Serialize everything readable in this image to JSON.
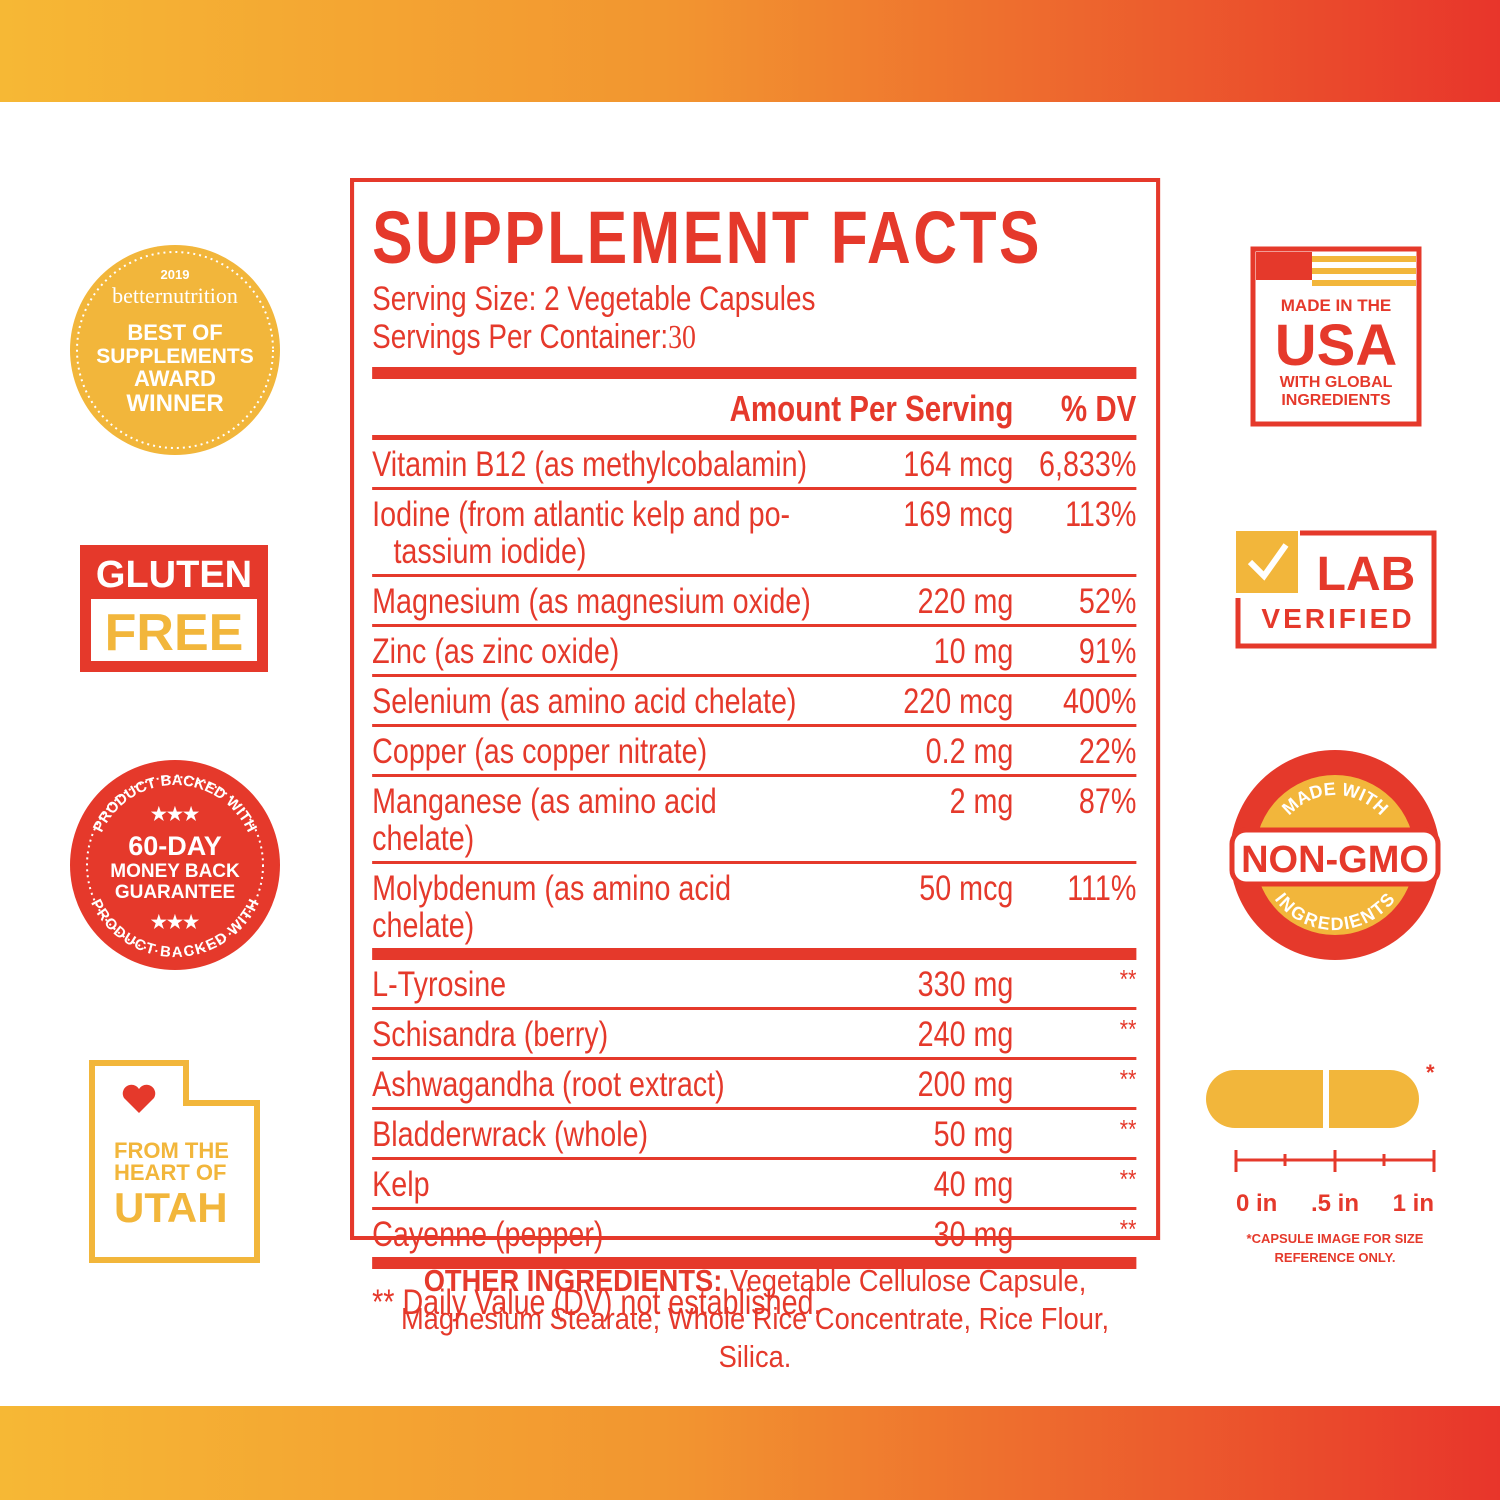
{
  "badges_left": {
    "award": {
      "year": "2019",
      "brand": "betternutrition",
      "lines": [
        "BEST OF",
        "SUPPLEMENTS",
        "AWARD",
        "WINNER"
      ]
    },
    "gluten_free": {
      "line1": "GLUTEN",
      "line2": "FREE"
    },
    "guarantee": {
      "arc": "PRODUCT BACKED WITH",
      "stars": "★★★",
      "days": "60-DAY",
      "lines": [
        "MONEY BACK",
        "GUARANTEE"
      ]
    },
    "utah": {
      "lines": [
        "FROM THE",
        "HEART OF"
      ],
      "state": "UTAH"
    }
  },
  "supplement_facts": {
    "title": "SUPPLEMENT FACTS",
    "serving_size": "Serving Size: 2 Vegetable Capsules",
    "servings_per_container": {
      "label": "Servings Per Container:",
      "value": "30"
    },
    "header": {
      "amount": "Amount Per Serving",
      "dv": "% DV"
    },
    "rows": [
      {
        "name": [
          "Vitamin B12 (as methylcobalamin)"
        ],
        "amount": "164 mcg",
        "dv": "6,833%"
      },
      {
        "name": [
          "Iodine (from atlantic kelp and po-",
          "tassium iodide)"
        ],
        "amount": "169 mcg",
        "dv": "113%"
      },
      {
        "name": [
          "Magnesium (as magnesium oxide)"
        ],
        "amount": "220 mg",
        "dv": "52%"
      },
      {
        "name": [
          "Zinc (as zinc oxide)"
        ],
        "amount": "10 mg",
        "dv": "91%"
      },
      {
        "name": [
          "Selenium (as amino acid chelate)"
        ],
        "amount": "220 mcg",
        "dv": "400%"
      },
      {
        "name": [
          "Copper (as copper nitrate)"
        ],
        "amount": "0.2 mg",
        "dv": "22%"
      },
      {
        "name": [
          "Manganese (as amino acid chelate)"
        ],
        "amount": "2 mg",
        "dv": "87%"
      },
      {
        "name": [
          "Molybdenum (as amino acid chelate)"
        ],
        "amount": "50 mcg",
        "dv": "111%"
      }
    ],
    "other_rows": [
      {
        "name": [
          "L-Tyrosine"
        ],
        "amount": "330 mg",
        "dv": "**"
      },
      {
        "name": [
          "Schisandra (berry)"
        ],
        "amount": "240 mg",
        "dv": "**"
      },
      {
        "name": [
          "Ashwagandha (root extract)"
        ],
        "amount": "200 mg",
        "dv": "**"
      },
      {
        "name": [
          "Bladderwrack (whole)"
        ],
        "amount": "50 mg",
        "dv": "**"
      },
      {
        "name": [
          "Kelp"
        ],
        "amount": "40 mg",
        "dv": "**"
      },
      {
        "name": [
          "Cayenne (pepper)"
        ],
        "amount": "30 mg",
        "dv": "**"
      }
    ],
    "footnote": "** Daily Value (DV) not established."
  },
  "other_ingredients": {
    "label": "OTHER INGREDIENTS:",
    "text": "Vegetable Cellulose Capsule, Magnesium Stearate, Whole Rice Concentrate, Rice Flour, Silica."
  },
  "badges_right": {
    "made_in_usa": {
      "top": "MADE IN THE",
      "country": "USA",
      "lines": [
        "WITH GLOBAL",
        "INGREDIENTS"
      ]
    },
    "lab_verified": {
      "line1": "LAB",
      "line2": "VERIFIED"
    },
    "non_gmo": {
      "top": "MADE WITH",
      "main": "NON-GMO",
      "bottom": "INGREDIENTS"
    },
    "capsule": {
      "asterisk": "*",
      "scale": [
        "0 in",
        ".5 in",
        "1 in"
      ],
      "note": [
        "*CAPSULE IMAGE FOR SIZE",
        "REFERENCE ONLY."
      ]
    }
  }
}
